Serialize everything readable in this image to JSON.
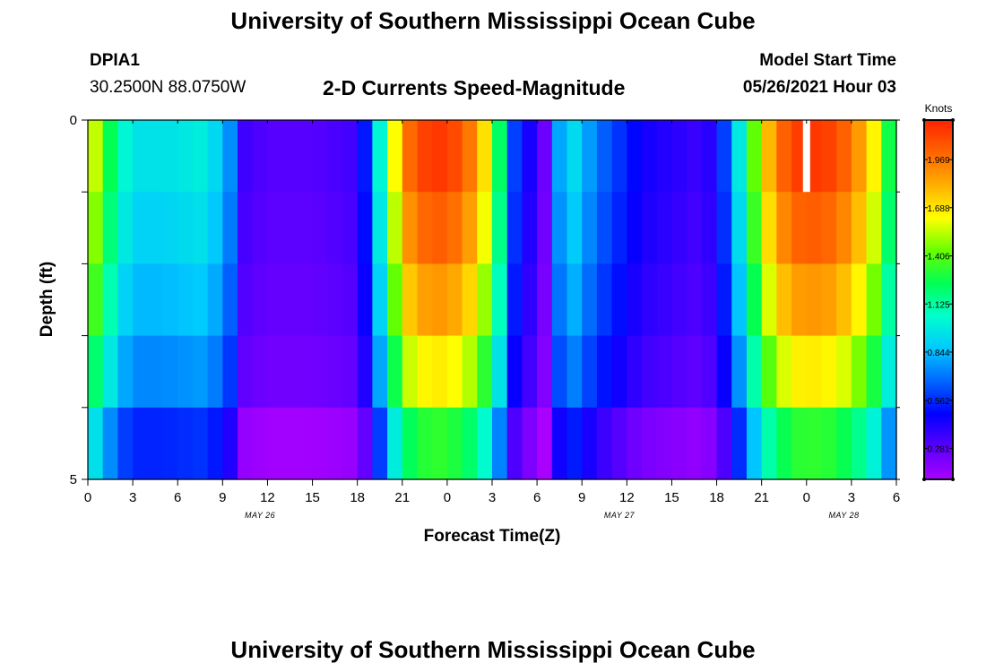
{
  "header": {
    "title_top": "University of Southern Mississippi Ocean Cube",
    "station_id": "DPIA1",
    "coordinates": "30.2500N  88.0750W",
    "chart_title": "2-D Currents Speed-Magnitude",
    "model_start_label": "Model Start Time",
    "model_start_value": "05/26/2021 Hour 03"
  },
  "footer": {
    "title_bottom": "University of Southern Mississippi Ocean Cube"
  },
  "colors": {
    "palette": [
      "#aa00ff",
      "#5a00ff",
      "#0000ff",
      "#0066ff",
      "#00c8ff",
      "#00ffcc",
      "#00ff55",
      "#66ff00",
      "#ffff00",
      "#ffb000",
      "#ff6600",
      "#ff2200"
    ],
    "frame": "#000000",
    "gap_marker": "#ffffff"
  },
  "chart_data": {
    "type": "heatmap",
    "title": "2-D Currents Speed-Magnitude",
    "xlabel": "Forecast Time(Z)",
    "ylabel": "Depth (ft)",
    "x_tick_labels": [
      "0",
      "3",
      "6",
      "9",
      "12",
      "15",
      "18",
      "21",
      "0",
      "3",
      "6",
      "9",
      "12",
      "15",
      "18",
      "21",
      "0",
      "3",
      "6"
    ],
    "x_range_hours": [
      0,
      54
    ],
    "date_labels": [
      {
        "text": "MAY 26",
        "hour": 11.5
      },
      {
        "text": "MAY 27",
        "hour": 35.5
      },
      {
        "text": "MAY 28",
        "hour": 50.5
      }
    ],
    "y_tick_labels": [
      "0",
      "5"
    ],
    "y_range": [
      0,
      5
    ],
    "depth_rows": 5,
    "colorbar": {
      "unit_label": "Knots",
      "tick_labels": [
        "1.969",
        "1.688",
        "1.406",
        "1.125",
        "0.844",
        "0.562",
        "0.281"
      ],
      "tick_values": [
        1.969,
        1.688,
        1.406,
        1.125,
        0.844,
        0.562,
        0.281
      ],
      "range": [
        0.1,
        2.2
      ]
    },
    "profile": {
      "time_anchors_hours": [
        0,
        1,
        2,
        3,
        5,
        8,
        9.5,
        10.5,
        12,
        15,
        18,
        19,
        20,
        21,
        22,
        24,
        26,
        27,
        28,
        28.5,
        30,
        30.5,
        31,
        32,
        34,
        37,
        41,
        42,
        43,
        44,
        45,
        46,
        47,
        48,
        50,
        52,
        53,
        54
      ],
      "surface_speed_knots": [
        1.7,
        1.4,
        1.1,
        0.95,
        0.95,
        1.0,
        0.75,
        0.35,
        0.3,
        0.3,
        0.35,
        0.7,
        1.35,
        1.9,
        2.1,
        2.15,
        1.9,
        1.5,
        0.95,
        0.6,
        0.35,
        0.25,
        0.6,
        1.0,
        0.7,
        0.45,
        0.35,
        0.45,
        0.75,
        1.2,
        1.65,
        1.95,
        2.1,
        2.15,
        2.1,
        1.8,
        1.5,
        1.05
      ],
      "depth_scale_by_row": [
        1.0,
        0.95,
        0.88,
        0.78,
        0.66
      ],
      "bottom_row_offset_knots": -0.08
    },
    "missing_cells": [
      {
        "hour": 48,
        "row": 0
      }
    ]
  }
}
